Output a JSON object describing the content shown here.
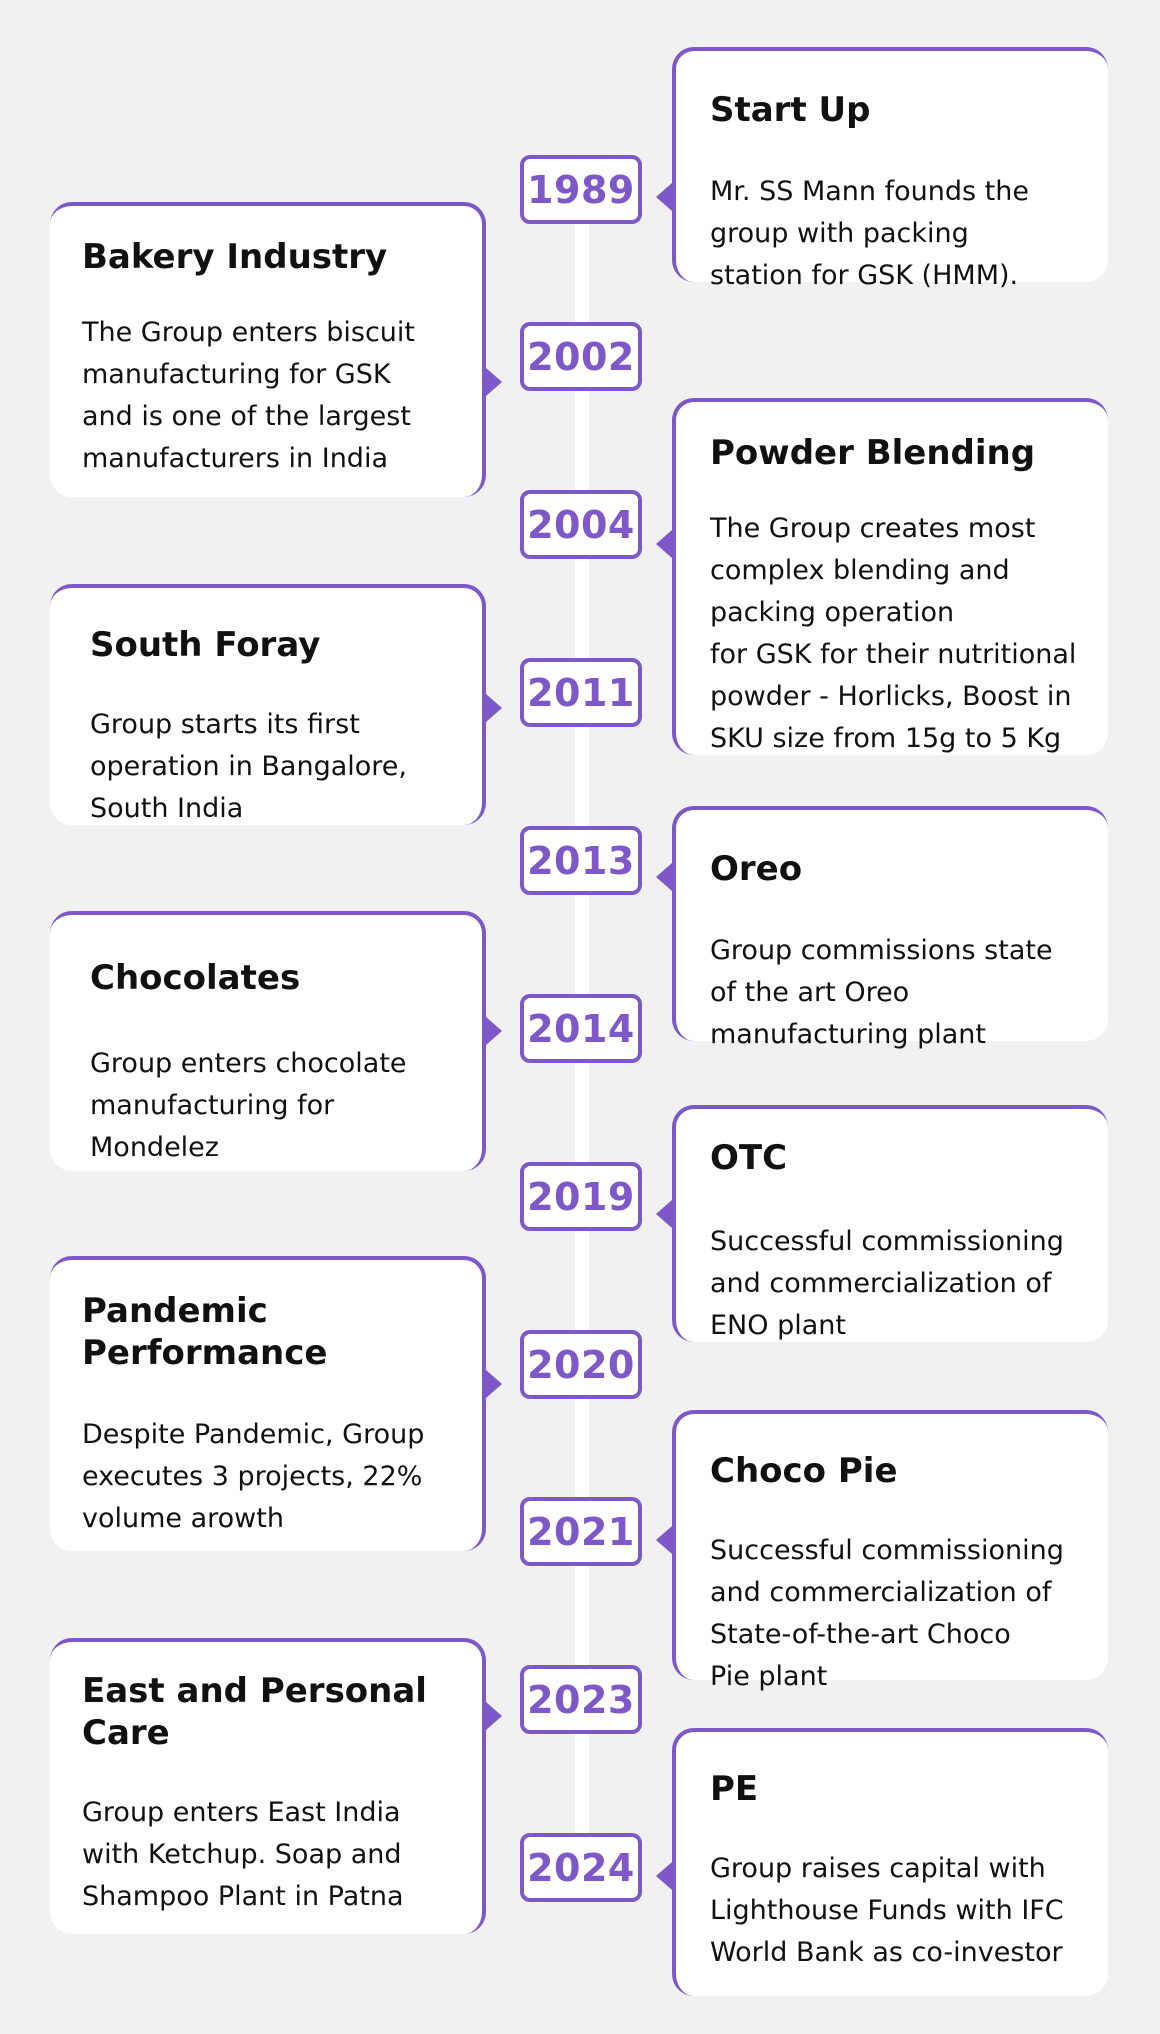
{
  "colors": {
    "accent": "#7e57c8",
    "background": "#f1f1f1",
    "card": "#ffffff",
    "text": "#111111"
  },
  "milestones": [
    {
      "year": "1989",
      "side": "right",
      "title": "Start Up",
      "description": "Mr. SS Mann founds the\ngroup with packing\nstation for GSK (HMM)."
    },
    {
      "year": "2002",
      "side": "left",
      "title": "Bakery Industry",
      "description": "The Group enters biscuit\nmanufacturing for GSK\nand is one of the largest\nmanufacturers in India"
    },
    {
      "year": "2004",
      "side": "right",
      "title": "Powder Blending",
      "description": "The Group creates most\ncomplex blending and\npacking operation\nfor GSK for their nutritional\npowder - Horlicks, Boost in\nSKU size from 15g to 5 Kg"
    },
    {
      "year": "2011",
      "side": "left",
      "title": "South Foray",
      "description": "Group starts its first\noperation in Bangalore,\nSouth India"
    },
    {
      "year": "2013",
      "side": "right",
      "title": "Oreo",
      "description": "Group commissions state\nof the art Oreo\nmanufacturing plant"
    },
    {
      "year": "2014",
      "side": "left",
      "title": "Chocolates",
      "description": "Group enters chocolate\nmanufacturing for\nMondelez"
    },
    {
      "year": "2019",
      "side": "right",
      "title": "OTC",
      "description": "Successful commissioning\nand commercialization of\nENO plant"
    },
    {
      "year": "2020",
      "side": "left",
      "title": "Pandemic\nPerformance",
      "description": "Despite Pandemic, Group\nexecutes 3 projects, 22%\nvolume arowth"
    },
    {
      "year": "2021",
      "side": "right",
      "title": "Choco Pie",
      "description": "Successful commissioning\nand commercialization of\nState-of-the-art Choco\nPie plant"
    },
    {
      "year": "2023",
      "side": "left",
      "title": "East and Personal\nCare",
      "description": "Group enters East India\nwith Ketchup. Soap and\nShampoo Plant in Patna"
    },
    {
      "year": "2024",
      "side": "right",
      "title": "PE",
      "description": "Group raises capital with\nLighthouse Funds with IFC\nWorld Bank as co-investor"
    }
  ]
}
